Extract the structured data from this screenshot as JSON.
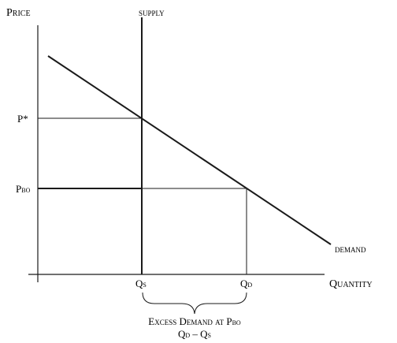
{
  "labels": {
    "y_axis": "Price",
    "x_axis": "Quantity",
    "supply": "supply",
    "demand": "demand",
    "p_star": "P*",
    "p_bo_main": "P",
    "p_bo_sub": "BO",
    "qs_main": "Q",
    "qs_sub": "S",
    "qd_main": "Q",
    "qd_sub": "D",
    "excess_line1_main": "Excess Demand at P",
    "excess_line1_sub": "BO",
    "excess_line2_a": "Q",
    "excess_line2_a_sub": "D",
    "excess_line2_minus": " – ",
    "excess_line2_b": "Q",
    "excess_line2_b_sub": "S"
  },
  "colors": {
    "line": "#1a1a1a",
    "background": "#ffffff"
  }
}
